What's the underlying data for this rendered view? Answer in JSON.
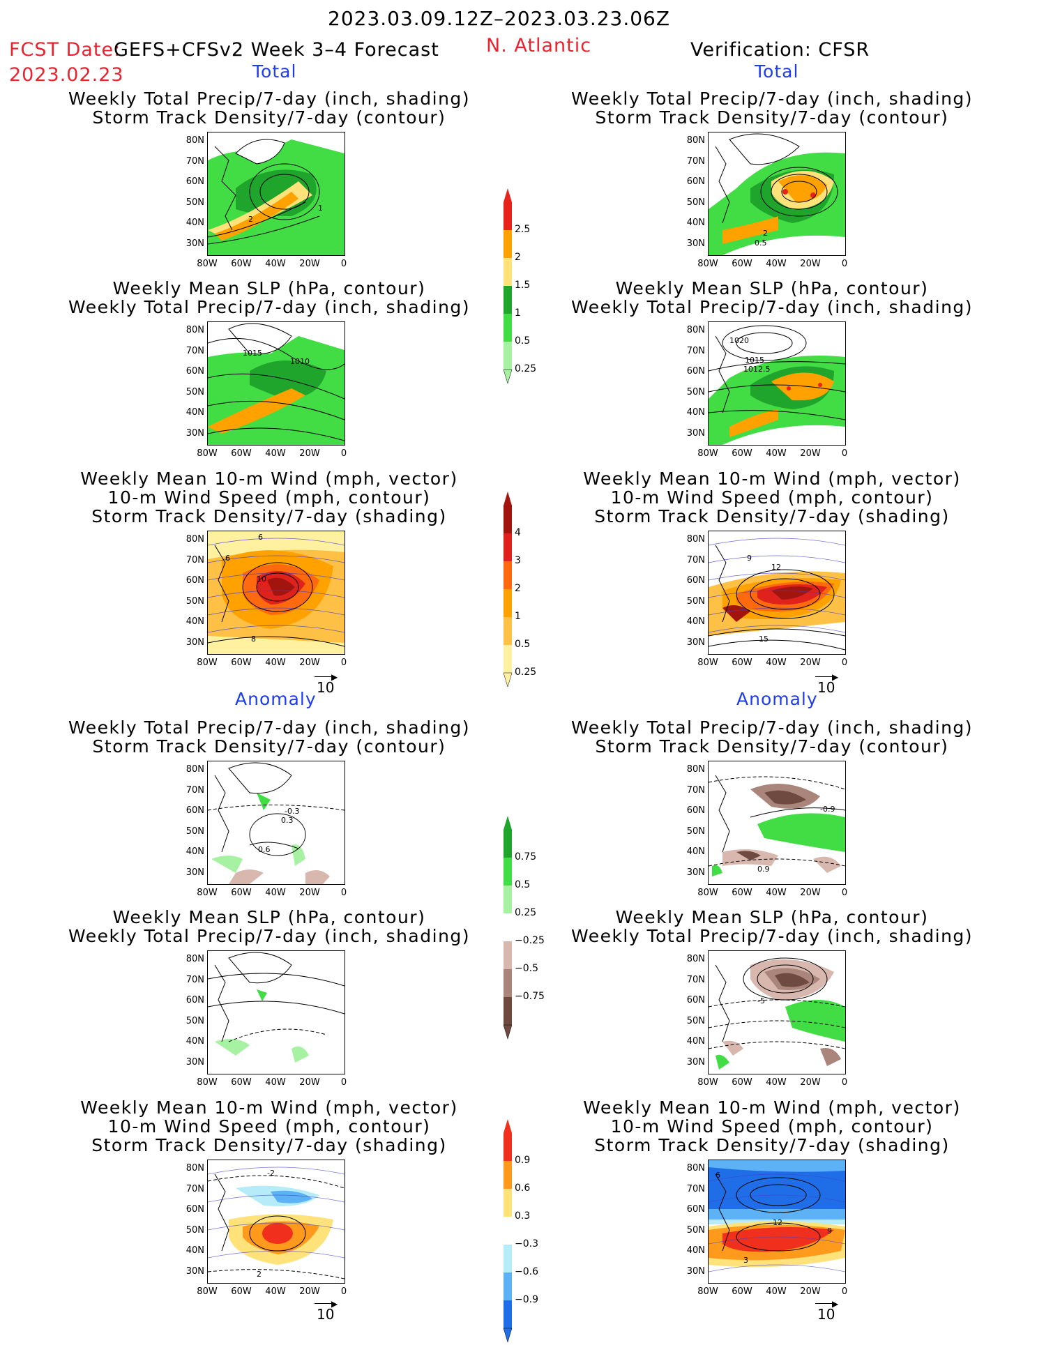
{
  "header": {
    "period": "2023.03.09.12Z–2023.03.23.06Z",
    "fcst_date_label": "FCST Date:",
    "fcst_date": "2023.02.23",
    "forecast_name": "GEFS+CFSv2 Week 3–4 Forecast",
    "region": "N. Atlantic",
    "verification": "Verification: CFSR"
  },
  "sections": {
    "total": "Total",
    "anomaly": "Anomaly"
  },
  "titles": {
    "precip_storm": [
      "Weekly Total Precip/7-day (inch, shading)",
      "Storm Track Density/7-day (contour)"
    ],
    "slp_precip": [
      "Weekly Mean SLP (hPa, contour)",
      "Weekly Total Precip/7-day (inch, shading)"
    ],
    "wind": [
      "Weekly Mean 10-m Wind (mph, vector)",
      "10-m Wind Speed (mph, contour)",
      "Storm Track Density/7-day (shading)"
    ]
  },
  "axes": {
    "lat_labels": [
      "80N",
      "70N",
      "60N",
      "50N",
      "40N",
      "30N"
    ],
    "lon_labels": [
      "80W",
      "60W",
      "40W",
      "20W",
      "0"
    ]
  },
  "vector_ref": "10",
  "colorbars": {
    "precip_total": {
      "labels": [
        "2.5",
        "2",
        "1.5",
        "1",
        "0.5",
        "0.25"
      ],
      "colors": [
        "#e8231b",
        "#ffa200",
        "#ffe37a",
        "#1fa52c",
        "#42dc45",
        "#a6f2a2"
      ]
    },
    "storm_total": {
      "labels": [
        "4",
        "3",
        "2",
        "1",
        "0.5",
        "0.25"
      ],
      "colors": [
        "#a2150e",
        "#e0221c",
        "#ff6a0e",
        "#ffa200",
        "#ffc046",
        "#fff1a0"
      ]
    },
    "precip_anom": {
      "labels": [
        "0.75",
        "0.5",
        "0.25",
        "−0.25",
        "−0.5",
        "−0.75"
      ],
      "colors": [
        "#1fa52c",
        "#42dc45",
        "#a6f2a2",
        "#ffffff",
        "#d8b8ae",
        "#a9857b",
        "#6e4a40"
      ]
    },
    "storm_anom": {
      "labels": [
        "0.9",
        "0.6",
        "0.3",
        "−0.3",
        "−0.6",
        "−0.9"
      ],
      "colors": [
        "#f0301c",
        "#ff9a1c",
        "#ffe27a",
        "#ffffff",
        "#b6ecf8",
        "#5cb2f5",
        "#1f6ee8"
      ]
    }
  },
  "contour_labels": {
    "l1": [
      "2",
      "1"
    ],
    "l2": [
      "1015",
      "1010"
    ],
    "l3": [
      "6",
      "10",
      "8",
      "6"
    ],
    "l4": [
      "-0.3",
      "0.3",
      "0.6"
    ],
    "l6": [
      "-2",
      "2"
    ],
    "r1": [
      "2",
      "0.5"
    ],
    "r2": [
      "1020",
      "1015",
      "1012.5"
    ],
    "r3": [
      "9",
      "12",
      "15"
    ],
    "r4": [
      "-0.9",
      "0.9"
    ],
    "r5": [
      "-5"
    ],
    "r6": [
      "6",
      "12",
      "9",
      "3"
    ]
  },
  "colors": {
    "accent_red": "#e8232f",
    "accent_blue": "#1d3cf0"
  }
}
